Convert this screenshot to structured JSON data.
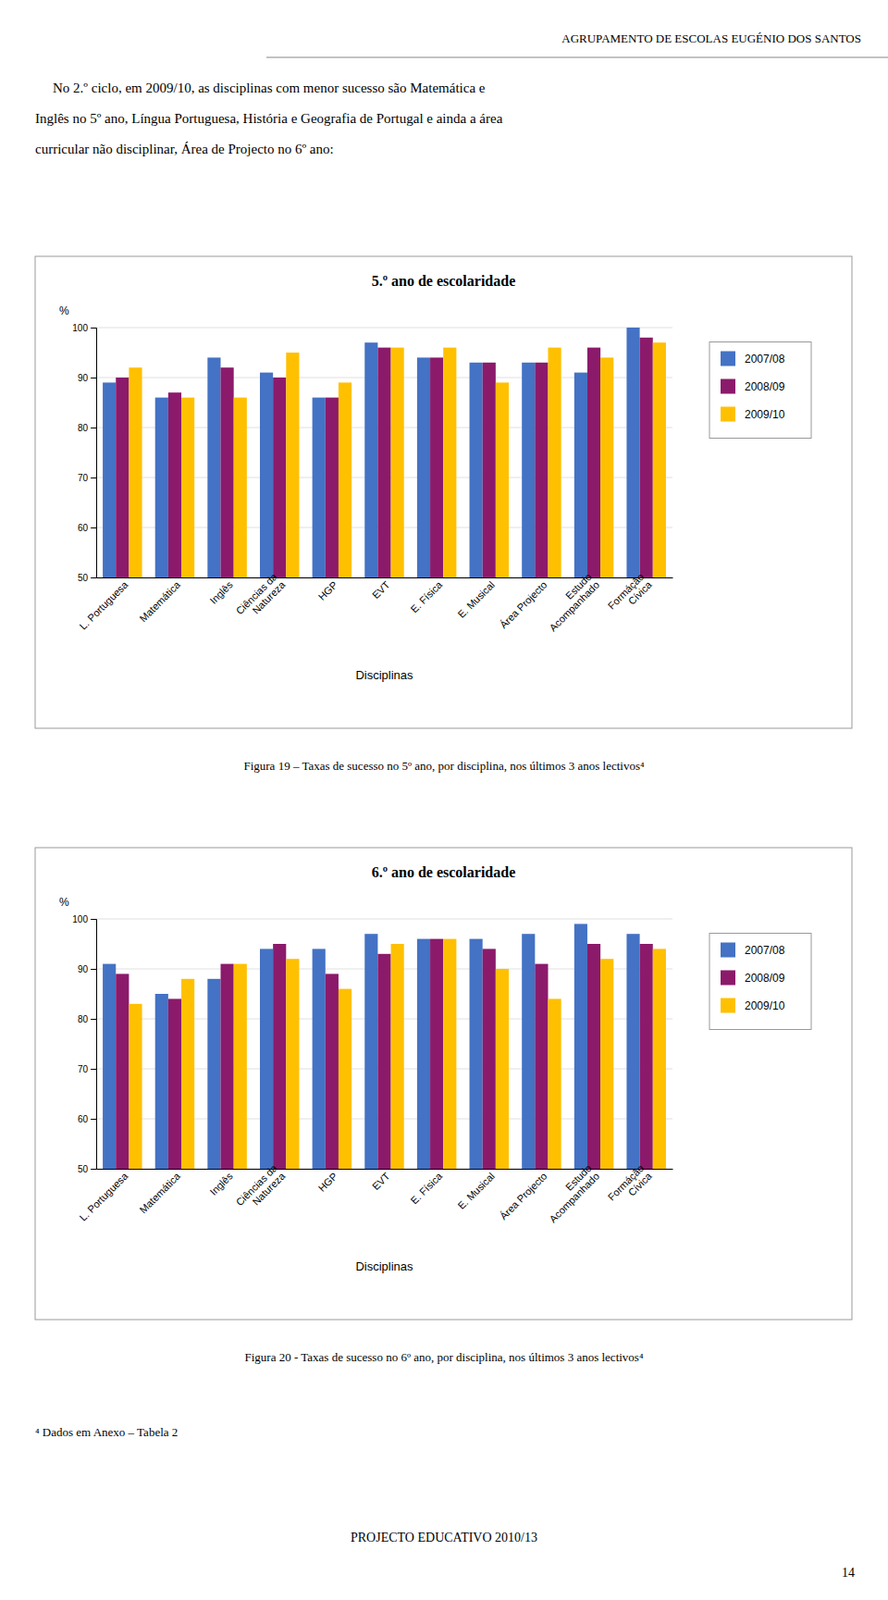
{
  "header": "AGRUPAMENTO DE ESCOLAS EUGÉNIO DOS SANTOS",
  "intro": [
    "No 2.º ciclo, em 2009/10, as disciplinas com menor sucesso são Matemática e",
    "Inglês no 5º ano, Língua Portuguesa, História e Geografia de Portugal e ainda a área",
    "curricular não disciplinar, Área de Projecto no 6º ano:"
  ],
  "chart_data": [
    {
      "type": "bar",
      "title": "5.º ano de escolaridade",
      "ylabel": "%",
      "xlabel": "Disciplinas",
      "categories": [
        "L. Portuguesa",
        "Matemática",
        "Inglês",
        "Ciências da\nNatureza",
        "HGP",
        "EVT",
        "E. Física",
        "E. Musical",
        "Área Projecto",
        "Estudo\nAcompanhado",
        "Formáção\nCívica"
      ],
      "series": [
        {
          "name": "2007/08",
          "color": "#4472C4",
          "values": [
            89,
            86,
            94,
            91,
            86,
            97,
            94,
            93,
            93,
            91,
            100
          ]
        },
        {
          "name": "2008/09",
          "color": "#8B1A6B",
          "values": [
            90,
            87,
            92,
            90,
            86,
            96,
            94,
            93,
            93,
            96,
            98
          ]
        },
        {
          "name": "2009/10",
          "color": "#FFC000",
          "values": [
            92,
            86,
            86,
            95,
            89,
            96,
            96,
            89,
            96,
            94,
            97
          ]
        }
      ],
      "ylim": [
        50,
        100
      ],
      "yticks": [
        50,
        60,
        70,
        80,
        90,
        100
      ],
      "grid": true,
      "legend": "right",
      "caption": "Figura 19 – Taxas de sucesso no 5º ano, por disciplina, nos últimos 3 anos lectivos⁴"
    },
    {
      "type": "bar",
      "title": "6.º ano de escolaridade",
      "ylabel": "%",
      "xlabel": "Disciplinas",
      "categories": [
        "L. Portuguesa",
        "Matemática",
        "Inglês",
        "Ciências da\nNatureza",
        "HGP",
        "EVT",
        "E. Física",
        "E. Musical",
        "Área Projecto",
        "Estudo\nAcompanhado",
        "Formáção\nCívica"
      ],
      "series": [
        {
          "name": "2007/08",
          "color": "#4472C4",
          "values": [
            91,
            85,
            88,
            94,
            94,
            97,
            96,
            96,
            97,
            99,
            97
          ]
        },
        {
          "name": "2008/09",
          "color": "#8B1A6B",
          "values": [
            89,
            84,
            91,
            95,
            89,
            93,
            96,
            94,
            91,
            95,
            95
          ]
        },
        {
          "name": "2009/10",
          "color": "#FFC000",
          "values": [
            83,
            88,
            91,
            92,
            86,
            95,
            96,
            90,
            84,
            92,
            94
          ]
        }
      ],
      "ylim": [
        50,
        100
      ],
      "yticks": [
        50,
        60,
        70,
        80,
        90,
        100
      ],
      "grid": true,
      "legend": "right",
      "caption": "Figura 20 - Taxas de sucesso no 6º ano, por disciplina, nos últimos 3 anos lectivos⁴"
    }
  ],
  "footnote": "⁴ Dados em Anexo – Tabela 2",
  "footer": "PROJECTO EDUCATIVO 2010/13",
  "page_number": "14"
}
